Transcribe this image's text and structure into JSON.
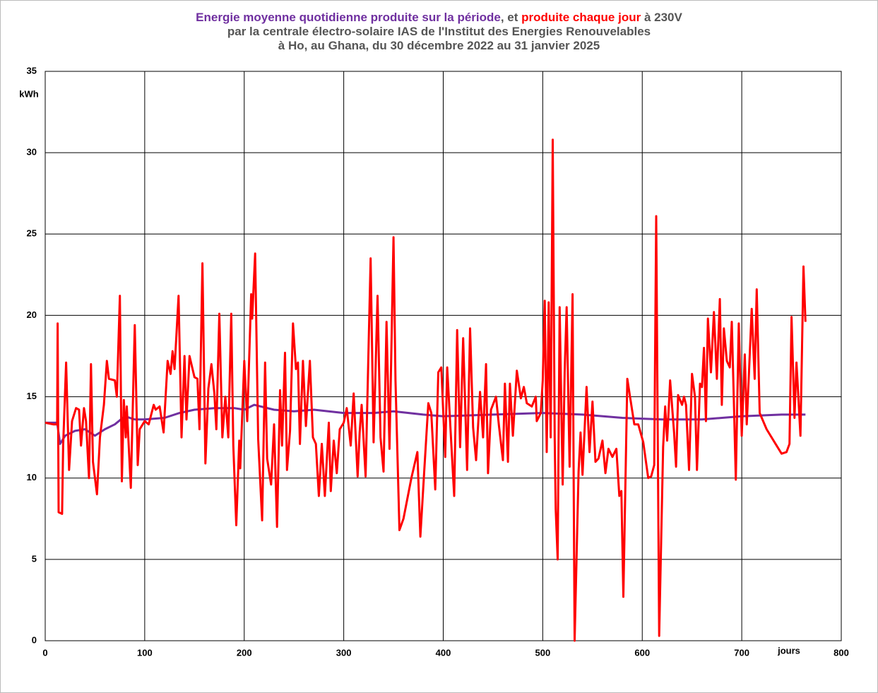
{
  "chart_data": {
    "type": "line",
    "title_parts": [
      ", et ",
      " à 230V"
    ],
    "subtitle": [
      "par la centrale électro-solaire IAS de l'Institut des Energies Renouvelables",
      "à Ho, au Ghana, du 30 décembre 2022 au 31 janvier 2025"
    ],
    "ylabel": "kWh",
    "xlabel": "jours",
    "xlim": [
      0,
      800
    ],
    "xticks": [
      0,
      100,
      200,
      300,
      400,
      500,
      600,
      700,
      800
    ],
    "ylim": [
      0,
      35
    ],
    "yticks": [
      0,
      5,
      10,
      15,
      20,
      25,
      30,
      35
    ],
    "grid": true,
    "series": [
      {
        "name": "Energie moyenne quotidienne produite sur la période",
        "color": "#7030a0",
        "x": [
          0,
          12,
          15,
          20,
          30,
          40,
          50,
          60,
          70,
          80,
          90,
          100,
          120,
          135,
          150,
          170,
          190,
          200,
          210,
          230,
          250,
          270,
          300,
          330,
          350,
          380,
          400,
          450,
          500,
          540,
          580,
          620,
          660,
          700,
          740,
          764
        ],
        "values": [
          13.4,
          13.4,
          12.1,
          12.6,
          12.9,
          13,
          12.6,
          13,
          13.3,
          13.8,
          13.6,
          13.6,
          13.7,
          14,
          14.2,
          14.3,
          14.3,
          14.2,
          14.5,
          14.2,
          14.1,
          14.2,
          14,
          14,
          14.1,
          13.9,
          13.8,
          13.9,
          14,
          13.9,
          13.7,
          13.6,
          13.6,
          13.8,
          13.9,
          13.9
        ]
      },
      {
        "name": "produite chaque jour",
        "color": "#ff0000",
        "x": [
          0,
          8,
          12,
          12.5,
          13.5,
          17,
          18,
          21,
          24,
          27,
          31,
          34,
          36,
          39,
          41,
          44,
          46,
          48,
          52,
          55,
          59,
          62,
          64,
          70,
          72,
          75,
          77,
          79,
          81,
          82,
          86,
          90,
          93,
          95,
          100,
          104,
          109,
          111,
          115,
          119,
          123,
          126,
          128,
          130,
          134,
          137,
          140,
          142,
          145,
          150,
          153,
          155,
          158,
          161,
          164,
          167,
          170,
          172,
          175,
          178,
          181,
          184,
          187,
          189,
          192,
          195,
          196,
          200,
          203,
          207,
          208,
          211,
          214,
          218,
          221,
          223,
          227,
          230,
          233,
          236,
          238,
          241,
          243,
          246,
          249,
          252,
          254,
          256,
          259,
          262,
          266,
          269,
          272,
          275,
          278,
          281,
          285,
          287,
          290,
          293,
          296,
          300,
          303,
          307,
          310,
          314,
          316,
          318,
          322,
          327,
          330,
          334,
          337,
          340,
          343,
          346,
          350,
          352,
          356,
          360,
          368,
          374,
          377,
          381,
          385,
          388,
          392,
          395,
          398,
          402,
          404,
          408,
          411,
          414,
          417,
          420,
          424,
          427,
          430,
          433,
          437,
          440,
          443,
          445,
          448,
          453,
          456,
          460,
          462,
          465,
          467,
          470,
          474,
          478,
          481,
          484,
          489,
          493,
          494,
          498,
          500,
          502,
          504,
          506,
          508,
          510,
          512,
          513,
          515,
          517,
          520,
          522,
          524,
          527,
          530,
          532,
          536,
          538,
          540,
          544,
          547,
          550,
          553,
          556,
          560,
          563,
          566,
          570,
          574,
          577,
          579,
          581,
          585,
          588,
          592,
          596,
          601,
          606,
          609,
          612,
          614,
          617,
          621,
          623,
          625,
          628,
          632,
          634,
          636,
          640,
          642,
          644,
          647,
          650,
          653,
          655,
          658,
          660,
          662,
          664,
          666,
          669,
          672,
          675,
          678,
          680,
          682,
          685,
          688,
          690,
          692,
          694,
          697,
          700,
          703,
          705,
          710,
          713,
          715,
          718,
          725,
          735,
          740,
          745,
          748,
          750,
          753,
          755,
          759,
          762,
          764
        ],
        "values": [
          13.4,
          13.3,
          13.3,
          19.5,
          7.9,
          7.8,
          12,
          17.1,
          10.5,
          13.5,
          14.3,
          14.2,
          12,
          14.3,
          13.5,
          10,
          17,
          11,
          9,
          12.5,
          14.5,
          17.2,
          16.1,
          16,
          15,
          21.2,
          9.8,
          14.8,
          12.5,
          14.4,
          9.4,
          19.4,
          10.8,
          13,
          13.5,
          13.3,
          14.5,
          14.2,
          14.4,
          12.8,
          17.2,
          16.4,
          17.8,
          16.7,
          21.2,
          12.5,
          17.5,
          13.6,
          17.5,
          16.2,
          16.1,
          13,
          23.2,
          10.9,
          15.5,
          17,
          15.2,
          13,
          20.1,
          12.5,
          15,
          12.5,
          20.1,
          12,
          7.1,
          12.3,
          10.6,
          17.2,
          13.5,
          21.3,
          19.8,
          23.8,
          12.4,
          7.4,
          17.1,
          11.2,
          9.6,
          13.3,
          7,
          15.4,
          12,
          17.7,
          10.5,
          12.9,
          19.5,
          16.7,
          17.1,
          12.1,
          17.2,
          13.2,
          17.2,
          12.5,
          12.1,
          8.9,
          12.1,
          8.9,
          13.4,
          9.2,
          12.3,
          10.3,
          13,
          13.4,
          14.3,
          12,
          15.2,
          10.1,
          12.8,
          14.5,
          10.1,
          23.5,
          12.2,
          21.2,
          12.5,
          10.4,
          19.6,
          11.8,
          24.8,
          16,
          6.8,
          7.5,
          10,
          11.6,
          6.4,
          10.5,
          14.6,
          14,
          9.3,
          16.5,
          16.8,
          11.3,
          16.8,
          12.2,
          8.9,
          19.1,
          11.9,
          18.6,
          10.5,
          19.2,
          13.1,
          11.1,
          15.3,
          12.5,
          17,
          10.3,
          14.2,
          15,
          13.2,
          11.1,
          15.8,
          11,
          15.8,
          12.6,
          16.6,
          14.9,
          15.6,
          14.6,
          14.4,
          15,
          13.5,
          14,
          16,
          20.9,
          11.6,
          20.8,
          12.5,
          30.8,
          12.5,
          8.1,
          5,
          20.5,
          9.6,
          16.5,
          20.5,
          10.7,
          21.3,
          0,
          10.4,
          12.8,
          10.2,
          15.6,
          11.6,
          14.7,
          11,
          11.2,
          12.3,
          10.3,
          11.8,
          11.3,
          11.8,
          8.9,
          9.2,
          2.7,
          16.1,
          14.9,
          13.3,
          13.3,
          12.2,
          10,
          10.1,
          10.8,
          26.1,
          0.3,
          11.9,
          14.4,
          12.3,
          16,
          12.8,
          10.7,
          15.1,
          14.5,
          15,
          14.5,
          10.5,
          16.4,
          15,
          10.5,
          15.8,
          15.6,
          18,
          13.5,
          19.8,
          16.5,
          20.2,
          16.1,
          21,
          14.5,
          19.2,
          17.2,
          16.8,
          19.6,
          14.8,
          9.9,
          19.5,
          12.6,
          17.6,
          13.3,
          20.4,
          16.1,
          21.6,
          14,
          13,
          12,
          11.5,
          11.6,
          12.1,
          19.9,
          13.7,
          17.1,
          12.6,
          23,
          19.6
        ]
      }
    ]
  }
}
